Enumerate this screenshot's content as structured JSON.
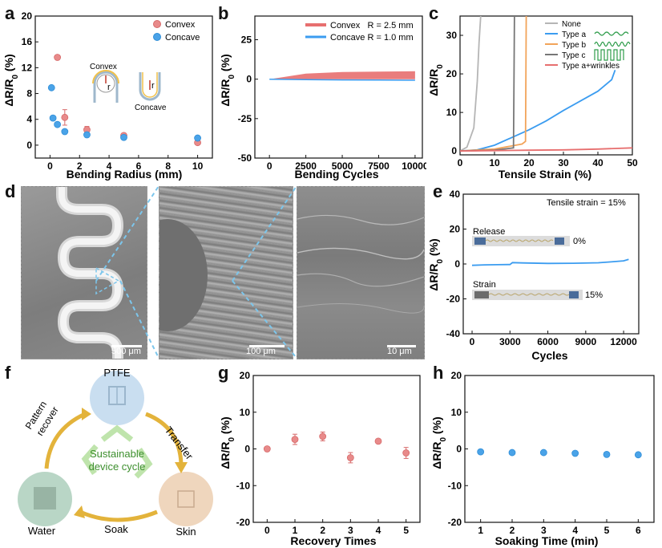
{
  "panels": {
    "a": "a",
    "b": "b",
    "c": "c",
    "d": "d",
    "e": "e",
    "f": "f",
    "g": "g",
    "h": "h"
  },
  "ylabel_main": "ΔR/R",
  "ylabel_sub": "0",
  "ylabel_unit": " (%)",
  "panel_a": {
    "xlabel": "Bending Radius (mm)",
    "legend": [
      "Convex",
      "Concave"
    ],
    "inset_labels": {
      "convex": "Convex",
      "concave": "Concave",
      "r": "r"
    },
    "colors": {
      "convex": "#e88a8a",
      "concave": "#4aa3e8"
    }
  },
  "panel_b": {
    "xlabel": "Bending Cycles",
    "legend": [
      "Convex   R = 2.5 mm",
      "Concave R = 1.0 mm"
    ],
    "colors": {
      "convex": "#e76f6f",
      "concave": "#3b9cf0"
    }
  },
  "panel_c": {
    "xlabel": "Tensile Strain (%)",
    "legend": [
      "None",
      "Type a",
      "Type b",
      "Type c",
      "Type a+wrinkles"
    ],
    "colors": {
      "none": "#b5b5b5",
      "a": "#3b9cf0",
      "b": "#f2a45a",
      "c": "#777777",
      "aw": "#e76f6f"
    }
  },
  "panel_d": {
    "scale_bars": [
      "500 μm",
      "100 μm",
      "10 μm"
    ]
  },
  "panel_e": {
    "xlabel": "Cycles",
    "annotation": "Tensile strain = 15%",
    "release_label": "Release",
    "release_value": "0%",
    "strain_label": "Strain",
    "strain_value": "15%"
  },
  "panel_f": {
    "ptfe": "PTFE",
    "transfer": "Transfer",
    "skin": "Skin",
    "soak": "Soak",
    "water": "Water",
    "pattern_recover": [
      "Pattern",
      "recover"
    ],
    "center": [
      "Sustainable",
      "device cycle"
    ]
  },
  "panel_g": {
    "xlabel": "Recovery Times"
  },
  "panel_h": {
    "xlabel": "Soaking Time (min)"
  },
  "chart_data": [
    {
      "panel": "a",
      "type": "scatter",
      "xlabel": "Bending Radius (mm)",
      "ylabel": "ΔR/R0 (%)",
      "xlim": [
        -1,
        11
      ],
      "ylim": [
        -2,
        20
      ],
      "xticks": [
        0,
        2,
        4,
        6,
        8,
        10
      ],
      "yticks": [
        0,
        4,
        8,
        12,
        16,
        20
      ],
      "legend_position": "top-right",
      "series": [
        {
          "name": "Convex",
          "x": [
            0.5,
            1.0,
            2.5,
            5.0,
            10.0
          ],
          "y": [
            13.6,
            4.3,
            2.4,
            1.5,
            0.4
          ],
          "err": [
            0,
            1.2,
            0.5,
            0.3,
            0.3
          ]
        },
        {
          "name": "Concave",
          "x": [
            0.1,
            0.2,
            0.5,
            1.0,
            2.5,
            5.0,
            10.0
          ],
          "y": [
            8.9,
            4.2,
            3.2,
            2.1,
            1.6,
            1.2,
            1.1
          ]
        }
      ]
    },
    {
      "panel": "b",
      "type": "area",
      "xlabel": "Bending Cycles",
      "ylabel": "ΔR/R0 (%)",
      "xlim": [
        -1000,
        10500
      ],
      "ylim": [
        -50,
        40
      ],
      "xticks": [
        0,
        2500,
        5000,
        7500,
        10000
      ],
      "yticks": [
        -50,
        -25,
        0,
        25
      ],
      "legend_position": "top-right",
      "series": [
        {
          "name": "Convex   R = 2.5 mm",
          "x": [
            0,
            2500,
            5000,
            7500,
            10000
          ],
          "y_low": [
            0,
            0,
            0,
            0,
            0
          ],
          "y_high": [
            0,
            3.5,
            4.5,
            4.8,
            5.0
          ]
        },
        {
          "name": "Concave R = 1.0 mm",
          "x": [
            0,
            2500,
            5000,
            7500,
            10000
          ],
          "y": [
            0,
            -0.3,
            -0.5,
            -0.6,
            -0.7
          ]
        }
      ]
    },
    {
      "panel": "c",
      "type": "line",
      "xlabel": "Tensile Strain (%)",
      "ylabel": "ΔR/R0",
      "xlim": [
        0,
        50
      ],
      "ylim": [
        -1,
        35
      ],
      "xticks": [
        0,
        10,
        20,
        30,
        40,
        50
      ],
      "yticks": [
        0,
        10,
        20,
        30
      ],
      "legend_position": "top-right",
      "series": [
        {
          "name": "None",
          "x": [
            0,
            2,
            4,
            5,
            5.5,
            6
          ],
          "y": [
            0,
            1,
            6,
            18,
            28,
            35
          ]
        },
        {
          "name": "Type a",
          "x": [
            0,
            5,
            10,
            15,
            20,
            25,
            30,
            35,
            40,
            44,
            45
          ],
          "y": [
            0,
            0.3,
            1.5,
            3.5,
            5.5,
            7.8,
            10.5,
            13.0,
            15.5,
            18.5,
            21
          ]
        },
        {
          "name": "Type b",
          "x": [
            0,
            10,
            18,
            19,
            19.2
          ],
          "y": [
            0,
            0.5,
            1.8,
            2.5,
            35
          ]
        },
        {
          "name": "Type c",
          "x": [
            0,
            10,
            15.5,
            15.8
          ],
          "y": [
            0,
            0.2,
            0.8,
            35
          ]
        },
        {
          "name": "Type a+wrinkles",
          "x": [
            0,
            10,
            20,
            30,
            40,
            50
          ],
          "y": [
            0,
            0.1,
            0.2,
            0.3,
            0.5,
            0.8
          ]
        }
      ]
    },
    {
      "panel": "e",
      "type": "line",
      "xlabel": "Cycles",
      "ylabel": "ΔR/R0 (%)",
      "xlim": [
        -700,
        13200
      ],
      "ylim": [
        -40,
        40
      ],
      "xticks": [
        0,
        3000,
        6000,
        9000,
        12000
      ],
      "yticks": [
        -40,
        -20,
        0,
        20,
        40
      ],
      "series": [
        {
          "name": "",
          "x": [
            0,
            1000,
            2000,
            3000,
            3200,
            4000,
            6000,
            8000,
            10000,
            11000,
            12000,
            12400
          ],
          "y": [
            -0.8,
            -0.5,
            -0.4,
            -0.3,
            0.8,
            0.6,
            0.3,
            0.4,
            0.7,
            1.2,
            1.8,
            2.6
          ]
        }
      ]
    },
    {
      "panel": "g",
      "type": "scatter",
      "xlabel": "Recovery Times",
      "ylabel": "ΔR/R0 (%)",
      "xlim": [
        -0.5,
        5.5
      ],
      "ylim": [
        -20,
        20
      ],
      "xticks": [
        0,
        1,
        2,
        3,
        4,
        5
      ],
      "yticks": [
        -20,
        -10,
        0,
        10,
        20
      ],
      "series": [
        {
          "name": "",
          "x": [
            0,
            1,
            2,
            3,
            4,
            5
          ],
          "y": [
            0,
            2.6,
            3.4,
            -2.4,
            2.1,
            -1.1
          ],
          "err": [
            0.4,
            1.4,
            1.2,
            1.4,
            0.5,
            1.5
          ]
        }
      ]
    },
    {
      "panel": "h",
      "type": "scatter",
      "xlabel": "Soaking Time (min)",
      "ylabel": "ΔR/R0 (%)",
      "xlim": [
        0.5,
        6.5
      ],
      "ylim": [
        -20,
        20
      ],
      "xticks": [
        1,
        2,
        3,
        4,
        5,
        6
      ],
      "yticks": [
        -20,
        -10,
        0,
        10,
        20
      ],
      "series": [
        {
          "name": "",
          "x": [
            1,
            2,
            3,
            4,
            5,
            6
          ],
          "y": [
            -0.8,
            -1.0,
            -1.0,
            -1.2,
            -1.5,
            -1.6
          ]
        }
      ]
    }
  ]
}
